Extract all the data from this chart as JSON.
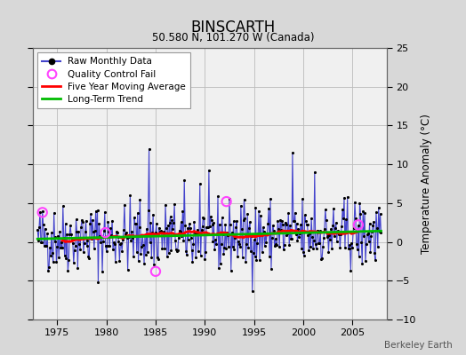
{
  "title": "BINSCARTH",
  "subtitle": "50.580 N, 101.270 W (Canada)",
  "ylabel": "Temperature Anomaly (°C)",
  "watermark": "Berkeley Earth",
  "ylim": [
    -10,
    25
  ],
  "yticks": [
    -10,
    -5,
    0,
    5,
    10,
    15,
    20,
    25
  ],
  "xlim": [
    1972.5,
    2008.5
  ],
  "xticks": [
    1975,
    1980,
    1985,
    1990,
    1995,
    2000,
    2005
  ],
  "bg_color": "#d8d8d8",
  "plot_bg_color": "#f0f0f0",
  "grid_color": "#bbbbbb",
  "line_color": "#4444cc",
  "dot_color": "#000000",
  "ma_color": "#ff0000",
  "trend_color": "#00bb00",
  "qc_color": "#ff44ff",
  "seed": 42
}
